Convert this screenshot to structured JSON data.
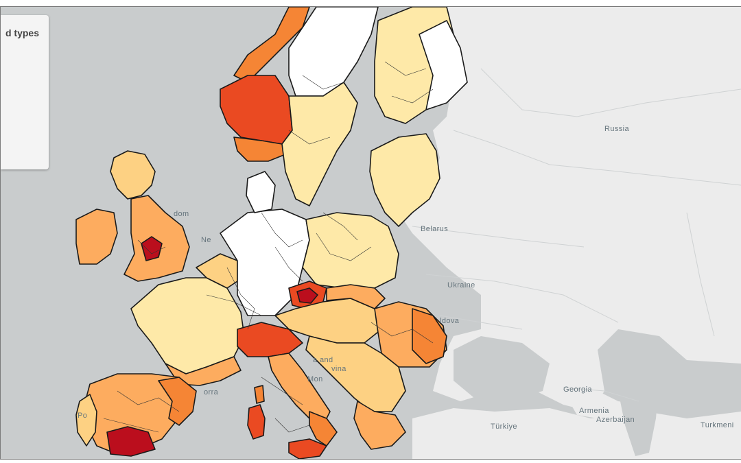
{
  "legend": {
    "title": "d types"
  },
  "colors": {
    "water": "#c9cccd",
    "land": "#ececec",
    "border": "#cfd2d3",
    "stroke": "#1a1a1a",
    "scale": [
      "#ffffff",
      "#fee9a8",
      "#fdd183",
      "#fdac5f",
      "#f58535",
      "#ea4a22",
      "#bb0e1d"
    ]
  },
  "labels": [
    {
      "name": "label-russia",
      "text": "Russia"
    },
    {
      "name": "label-belarus",
      "text": "Belarus"
    },
    {
      "name": "label-ukraine",
      "text": "Ukraine"
    },
    {
      "name": "label-moldova",
      "text": "ldova"
    },
    {
      "name": "label-georgia",
      "text": "Georgia"
    },
    {
      "name": "label-armenia",
      "text": "Armenia"
    },
    {
      "name": "label-azerbaijan",
      "text": "Azerbaijan"
    },
    {
      "name": "label-turkiye",
      "text": "Türkiye"
    },
    {
      "name": "label-turkmenistan",
      "text": "Turkmeni"
    },
    {
      "name": "label-united-kingdom",
      "text": "dom"
    },
    {
      "name": "label-netherlands",
      "text": "Ne"
    },
    {
      "name": "label-bosnia-1",
      "text": "a and"
    },
    {
      "name": "label-bosnia-2",
      "text": "vina"
    },
    {
      "name": "label-montenegro",
      "text": "Mon"
    },
    {
      "name": "label-andorra",
      "text": "orra"
    },
    {
      "name": "label-portugal",
      "text": "Po"
    }
  ],
  "regions": [
    {
      "name": "region-norway-north",
      "level": 4
    },
    {
      "name": "region-norway-west",
      "level": 5
    },
    {
      "name": "region-norway-south",
      "level": 4
    },
    {
      "name": "region-sweden-north",
      "level": 0
    },
    {
      "name": "region-sweden-south",
      "level": 1
    },
    {
      "name": "region-finland",
      "level": 1
    },
    {
      "name": "region-finland-east",
      "level": 0
    },
    {
      "name": "region-baltics",
      "level": 1
    },
    {
      "name": "region-scotland",
      "level": 2
    },
    {
      "name": "region-england",
      "level": 3
    },
    {
      "name": "region-england-core",
      "level": 6
    },
    {
      "name": "region-ireland",
      "level": 3
    },
    {
      "name": "region-france",
      "level": 1
    },
    {
      "name": "region-france-south",
      "level": 3
    },
    {
      "name": "region-benelux",
      "level": 2
    },
    {
      "name": "region-germany",
      "level": 0
    },
    {
      "name": "region-denmark",
      "level": 0
    },
    {
      "name": "region-poland",
      "level": 1
    },
    {
      "name": "region-czechia",
      "level": 5
    },
    {
      "name": "region-czechia-core",
      "level": 6
    },
    {
      "name": "region-austria-hungary",
      "level": 2
    },
    {
      "name": "region-slovakia",
      "level": 3
    },
    {
      "name": "region-romania",
      "level": 3
    },
    {
      "name": "region-romania-east",
      "level": 4
    },
    {
      "name": "region-balkans",
      "level": 2
    },
    {
      "name": "region-greece",
      "level": 3
    },
    {
      "name": "region-italy-north",
      "level": 5
    },
    {
      "name": "region-italy",
      "level": 3
    },
    {
      "name": "region-italy-south",
      "level": 4
    },
    {
      "name": "region-sicily",
      "level": 5
    },
    {
      "name": "region-sardinia",
      "level": 5
    },
    {
      "name": "region-corsica",
      "level": 4
    },
    {
      "name": "region-spain",
      "level": 3
    },
    {
      "name": "region-spain-east",
      "level": 4
    },
    {
      "name": "region-andalusia",
      "level": 6
    },
    {
      "name": "region-portugal",
      "level": 2
    }
  ]
}
